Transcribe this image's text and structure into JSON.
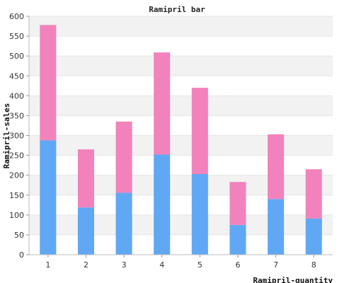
{
  "chart_data": {
    "type": "bar",
    "stacked": true,
    "title": "Ramipril bar",
    "xlabel": "Ramipril-quantity",
    "ylabel": "Ramipril-sales",
    "categories": [
      "1",
      "2",
      "3",
      "4",
      "5",
      "6",
      "7",
      "8"
    ],
    "series": [
      {
        "values": [
          288,
          119,
          156,
          252,
          203,
          75,
          140,
          91
        ],
        "color": "#60a8f4"
      },
      {
        "values": [
          290,
          146,
          179,
          257,
          217,
          108,
          163,
          124
        ],
        "color": "#f282bc"
      }
    ],
    "ylim": [
      0,
      600
    ],
    "yticks": [
      0,
      50,
      100,
      150,
      200,
      250,
      300,
      350,
      400,
      450,
      500,
      550,
      600
    ],
    "grid": true,
    "grid_band_colors": [
      "#ffffff",
      "#f2f2f2"
    ],
    "legend": "none"
  }
}
